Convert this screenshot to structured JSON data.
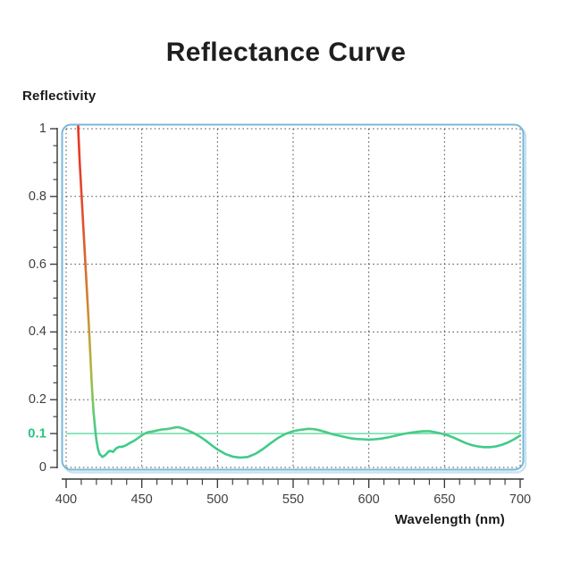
{
  "title": "Reflectance Curve",
  "y_axis": {
    "title": "Reflectivity",
    "tick_labels": [
      "1",
      "0.8",
      "0.6",
      "0.4",
      "0.2",
      "0"
    ],
    "tick_values": [
      1,
      0.8,
      0.6,
      0.4,
      0.2,
      0
    ],
    "minor_tick_step": 0.05,
    "highlight_tick": {
      "label": "0.1",
      "value": 0.1
    }
  },
  "x_axis": {
    "title": "Wavelength (nm)",
    "tick_labels": [
      "400",
      "450",
      "500",
      "550",
      "600",
      "650",
      "700"
    ],
    "tick_values": [
      400,
      450,
      500,
      550,
      600,
      650,
      700
    ],
    "minor_tick_step": 10
  },
  "colors": {
    "title_text": "#1e1e1e",
    "axis_text": "#3f3f3f",
    "highlight_green": "#2bc47e",
    "reference_line_green": "#7fe2b5",
    "curve_green": "#3ecb8c",
    "curve_red": "#e93323",
    "frame_blue": "#79b7d9",
    "frame_shadow_blue": "#c9e3f1",
    "grid": "#2f2f2f"
  },
  "chart_data": {
    "type": "line",
    "title": "Reflectance Curve",
    "xlabel": "Wavelength (nm)",
    "ylabel": "Reflectivity",
    "xlim": [
      400,
      700
    ],
    "ylim": [
      0,
      1
    ],
    "grid": "dotted grid at major ticks, both axes",
    "legend": "none",
    "reference_line": {
      "y": 0.1,
      "label": "0.1",
      "color": "#7fe2b5"
    },
    "series": [
      {
        "name": "reflectance",
        "style": "stroke gradient by value: red at high reflectivity through orange/yellow to green at low reflectivity",
        "points": [
          [
            408,
            1.0
          ],
          [
            409,
            0.9
          ],
          [
            410,
            0.82
          ],
          [
            411,
            0.74
          ],
          [
            412,
            0.66
          ],
          [
            413,
            0.58
          ],
          [
            414,
            0.5
          ],
          [
            415,
            0.42
          ],
          [
            416,
            0.33
          ],
          [
            417,
            0.24
          ],
          [
            418,
            0.17
          ],
          [
            419,
            0.12
          ],
          [
            420,
            0.08
          ],
          [
            421,
            0.055
          ],
          [
            422,
            0.04
          ],
          [
            424,
            0.031
          ],
          [
            426,
            0.037
          ],
          [
            428,
            0.047
          ],
          [
            429,
            0.049
          ],
          [
            431,
            0.046
          ],
          [
            433,
            0.056
          ],
          [
            435,
            0.061
          ],
          [
            437,
            0.061
          ],
          [
            439,
            0.064
          ],
          [
            442,
            0.072
          ],
          [
            445,
            0.079
          ],
          [
            448,
            0.088
          ],
          [
            451,
            0.098
          ],
          [
            454,
            0.104
          ],
          [
            457,
            0.106
          ],
          [
            460,
            0.109
          ],
          [
            463,
            0.112
          ],
          [
            466,
            0.113
          ],
          [
            469,
            0.115
          ],
          [
            472,
            0.118
          ],
          [
            474,
            0.119
          ],
          [
            477,
            0.115
          ],
          [
            480,
            0.11
          ],
          [
            484,
            0.102
          ],
          [
            488,
            0.092
          ],
          [
            492,
            0.08
          ],
          [
            496,
            0.066
          ],
          [
            500,
            0.053
          ],
          [
            505,
            0.04
          ],
          [
            510,
            0.032
          ],
          [
            515,
            0.029
          ],
          [
            520,
            0.031
          ],
          [
            525,
            0.04
          ],
          [
            530,
            0.054
          ],
          [
            535,
            0.071
          ],
          [
            540,
            0.087
          ],
          [
            545,
            0.099
          ],
          [
            550,
            0.107
          ],
          [
            555,
            0.111
          ],
          [
            560,
            0.114
          ],
          [
            564,
            0.113
          ],
          [
            568,
            0.109
          ],
          [
            572,
            0.104
          ],
          [
            576,
            0.098
          ],
          [
            580,
            0.094
          ],
          [
            584,
            0.09
          ],
          [
            588,
            0.086
          ],
          [
            592,
            0.084
          ],
          [
            596,
            0.083
          ],
          [
            600,
            0.082
          ],
          [
            604,
            0.083
          ],
          [
            608,
            0.085
          ],
          [
            612,
            0.088
          ],
          [
            616,
            0.092
          ],
          [
            620,
            0.096
          ],
          [
            624,
            0.1
          ],
          [
            628,
            0.103
          ],
          [
            632,
            0.105
          ],
          [
            636,
            0.107
          ],
          [
            640,
            0.107
          ],
          [
            644,
            0.104
          ],
          [
            648,
            0.1
          ],
          [
            652,
            0.095
          ],
          [
            656,
            0.088
          ],
          [
            660,
            0.08
          ],
          [
            664,
            0.072
          ],
          [
            668,
            0.066
          ],
          [
            672,
            0.062
          ],
          [
            676,
            0.06
          ],
          [
            680,
            0.06
          ],
          [
            684,
            0.062
          ],
          [
            688,
            0.067
          ],
          [
            692,
            0.074
          ],
          [
            696,
            0.083
          ],
          [
            700,
            0.094
          ]
        ]
      }
    ]
  }
}
